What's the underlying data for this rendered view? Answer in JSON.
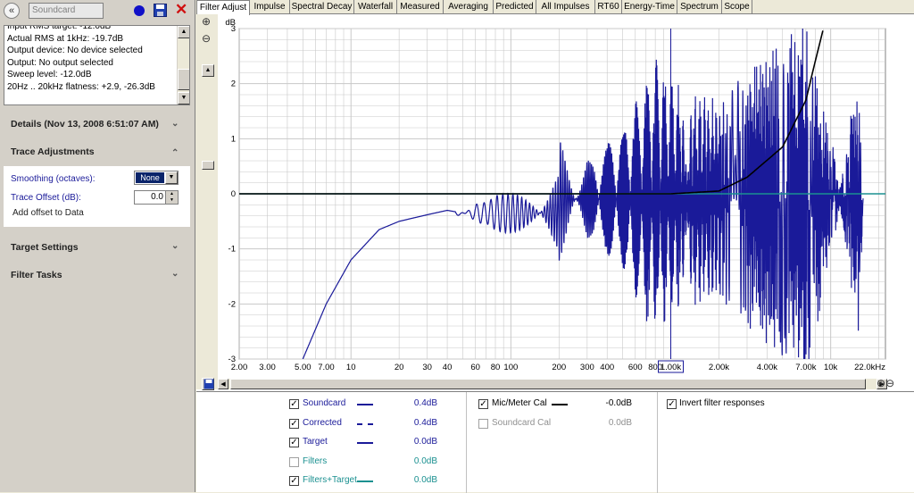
{
  "left": {
    "collapse_icon": "double-chevron-left-icon",
    "measurement_name": "Soundcard",
    "info_lines": [
      "Input RMS target: -12.0dB",
      "Actual RMS at 1kHz: -19.7dB",
      "Output device: No device selected",
      "Output: No output selected",
      "Sweep level: -12.0dB",
      "20Hz .. 20kHz flatness: +2.9, -26.3dB"
    ],
    "details_label": "Details  (Nov 13, 2008 6:51:07 AM)",
    "trace_adjustments_label": "Trace Adjustments",
    "smoothing_label": "Smoothing (octaves):",
    "smoothing_value": "None",
    "trace_offset_label": "Trace Offset (dB):",
    "trace_offset_value": "0.0",
    "add_offset_label": "Add offset to Data",
    "target_settings_label": "Target Settings",
    "filter_tasks_label": "Filter Tasks"
  },
  "tabs": [
    "Filter Adjust",
    "Impulse",
    "Spectral Decay",
    "Waterfall",
    "Measured",
    "Averaging",
    "Predicted",
    "All Impulses",
    "RT60",
    "Energy-Time",
    "Spectrum",
    "Scope"
  ],
  "active_tab": "Filter Adjust",
  "plot": {
    "y_unit": "dB",
    "cursor_label": "1.00k",
    "colors": {
      "soundcard": "#1a1a99",
      "cal": "#000000",
      "filters_target": "#1a9090",
      "grid": "#c8c8c8"
    }
  },
  "chart_data": {
    "type": "line",
    "xscale": "log",
    "xlim": [
      2,
      22000
    ],
    "ylim": [
      -3,
      3
    ],
    "ylabel": "dB",
    "x_ticks": [
      "2.00",
      "3.00",
      "5.00",
      "7.00",
      "10",
      "20",
      "30",
      "40",
      "60",
      "80",
      "100",
      "200",
      "300",
      "400",
      "600",
      "800",
      "1.00k",
      "2.00k",
      "4.00k",
      "7.00k",
      "10k",
      "22.0kHz"
    ],
    "y_ticks": [
      "3",
      "2",
      "1",
      "0",
      "-1",
      "-2",
      "-3"
    ],
    "series": [
      {
        "name": "Soundcard",
        "x": [
          5,
          7,
          10,
          15,
          20,
          30,
          40,
          50,
          60,
          70,
          80,
          100,
          150,
          200,
          300,
          500,
          800,
          1000,
          2000,
          4000,
          7000,
          10000,
          15000,
          16000
        ],
        "y": [
          -3,
          -2,
          -1.2,
          -0.65,
          -0.5,
          -0.38,
          -0.3,
          -0.35,
          -0.65,
          -0.3,
          -0.4,
          -0.35,
          -0.2,
          -0.9,
          0.5,
          1.0,
          2.2,
          1.8,
          1.5,
          2.3,
          2.8,
          1.0,
          -2.2,
          0.1
        ]
      },
      {
        "name": "Mic/Meter Cal",
        "x": [
          2,
          100,
          1000,
          2000,
          3000,
          5000,
          7000,
          8000,
          9000
        ],
        "y": [
          0,
          0,
          0,
          0.05,
          0.3,
          0.85,
          1.7,
          2.4,
          3.0
        ]
      },
      {
        "name": "Filters+Target",
        "x": [
          2,
          22000
        ],
        "y": [
          0,
          0
        ]
      }
    ]
  },
  "legend": {
    "col1": [
      {
        "name": "Soundcard",
        "value": "0.4dB",
        "checked": true,
        "style": "solid",
        "color": "#1a1a99"
      },
      {
        "name": "Corrected",
        "value": "0.4dB",
        "checked": true,
        "style": "dashed",
        "color": "#1a1a99"
      },
      {
        "name": "Target",
        "value": "0.0dB",
        "checked": true,
        "style": "solid",
        "color": "#1a1a99"
      },
      {
        "name": "Filters",
        "value": "0.0dB",
        "checked": false,
        "style": "none",
        "color": "#1a9090"
      },
      {
        "name": "Filters+Target",
        "value": "0.0dB",
        "checked": true,
        "style": "solid",
        "color": "#1a9090"
      }
    ],
    "col2": [
      {
        "name": "Mic/Meter Cal",
        "value": "-0.0dB",
        "checked": true,
        "style": "solid",
        "color": "#000000"
      },
      {
        "name": "Soundcard Cal",
        "value": "0.0dB",
        "checked": false,
        "style": "none",
        "color": "#909090"
      }
    ],
    "invert_label": "Invert filter responses",
    "invert_checked": true
  }
}
